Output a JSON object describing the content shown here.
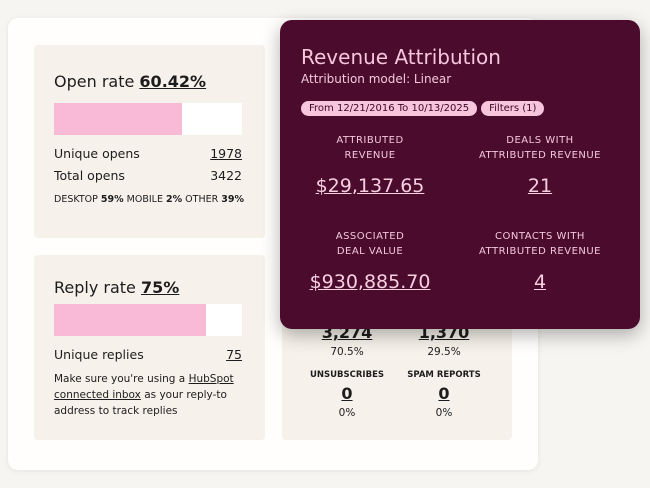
{
  "open_rate": {
    "label": "Open rate",
    "value": "60.42%",
    "rows": [
      {
        "label": "Unique opens",
        "value": "1978"
      },
      {
        "label": "Total opens",
        "value": "3422"
      }
    ],
    "devices": [
      {
        "label": "DESKTOP",
        "value": "59%"
      },
      {
        "label": "MOBILE",
        "value": "2%"
      },
      {
        "label": "OTHER",
        "value": "39%"
      }
    ]
  },
  "reply_rate": {
    "label": "Reply rate",
    "value": "75%",
    "rows": [
      {
        "label": "Unique replies",
        "value": "75"
      }
    ],
    "note": {
      "before": "Make  sure you're using a",
      "link": "HubSpot connected inbox",
      "after": "as your reply-to address to track replies"
    }
  },
  "stats": {
    "top": [
      {
        "value": "3,274",
        "percent": "70.5%"
      },
      {
        "value": "1,370",
        "percent": "29.5%"
      }
    ],
    "bottom": [
      {
        "label": "UNSUBSCRIBES",
        "value": "0",
        "percent": "0%"
      },
      {
        "label": "SPAM REPORTS",
        "value": "0",
        "percent": "0%"
      }
    ]
  },
  "revenue": {
    "title": "Revenue Attribution",
    "subtitle": "Attribution model: Linear",
    "date_filter": "From 12/21/2016 To 10/13/2025",
    "filters": "Filters (1)",
    "metrics": [
      {
        "label_lines": [
          "ATTRIBUTED",
          "REVENUE"
        ],
        "value": "$29,137.65"
      },
      {
        "label_lines": [
          "DEALS WITH",
          "ATTRIBUTED REVENUE"
        ],
        "value": "21"
      },
      {
        "label_lines": [
          "ASSOCIATED",
          "DEAL VALUE"
        ],
        "value": "$930,885.70"
      },
      {
        "label_lines": [
          "CONTACTS WITH",
          "ATTRIBUTED REVENUE"
        ],
        "value": "4"
      }
    ]
  }
}
